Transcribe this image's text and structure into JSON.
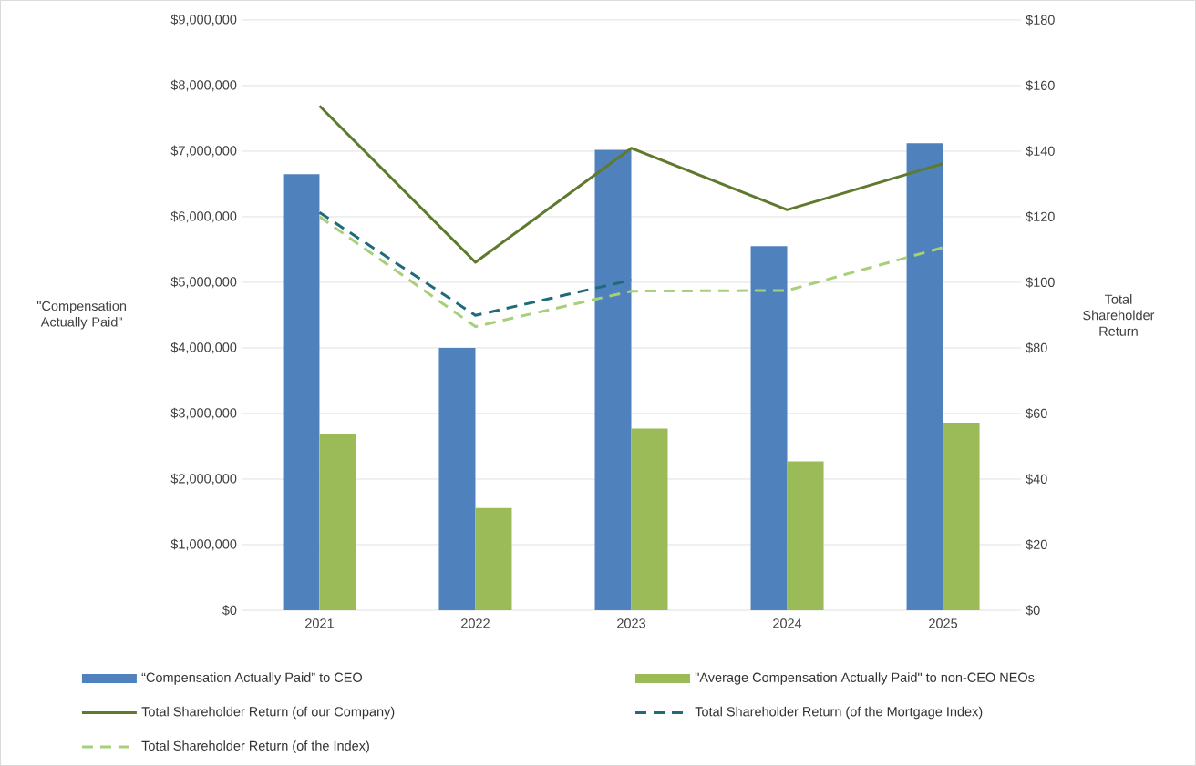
{
  "chart_data": {
    "type": "bar",
    "categories": [
      "2021",
      "2022",
      "2023",
      "2024",
      "2025"
    ],
    "ylabel": "\"Compensation Actually Paid\"",
    "y2label": "Total Shareholder Return",
    "series": [
      {
        "name": "“Compensation Actually Paid” to CEO",
        "color": "#4f81bd",
        "values": [
          6650000,
          4000000,
          7020000,
          5550000,
          7120000
        ]
      },
      {
        "name": "\"Average Compensation Actually Paid\" to non-CEO NEOs",
        "color": "#9bbb59",
        "values": [
          2680000,
          1560000,
          2770000,
          2270000,
          2860000
        ]
      },
      {
        "name": "Total Shareholder Return (of our Company)",
        "type": "line",
        "axis": "y2",
        "color": "#5f7a2e",
        "line_style": "solid",
        "values": [
          153.8,
          106.1,
          140.9,
          122.1,
          136.2
        ]
      },
      {
        "name": "Total Shareholder Return (of the Mortgage Index)",
        "type": "line",
        "axis": "y2",
        "color": "#1f6b7a",
        "line_style": "dashed",
        "values": [
          121.3,
          89.9,
          100.7,
          null,
          null
        ]
      },
      {
        "name": "Total Shareholder Return (of the Index)",
        "type": "line",
        "axis": "y2",
        "color": "#a8cf7a",
        "line_style": "dashed",
        "values": [
          120.0,
          86.5,
          97.3,
          97.5,
          110.6
        ]
      }
    ],
    "ylim": [
      0,
      9000000
    ],
    "yticks": [
      {
        "value": 0,
        "label": "$0"
      },
      {
        "value": 1000000,
        "label": "$1,000,000"
      },
      {
        "value": 2000000,
        "label": "$2,000,000"
      },
      {
        "value": 3000000,
        "label": "$3,000,000"
      },
      {
        "value": 4000000,
        "label": "$4,000,000"
      },
      {
        "value": 5000000,
        "label": "$5,000,000"
      },
      {
        "value": 6000000,
        "label": "$6,000,000"
      },
      {
        "value": 7000000,
        "label": "$7,000,000"
      },
      {
        "value": 8000000,
        "label": "$8,000,000"
      },
      {
        "value": 9000000,
        "label": "$9,000,000"
      }
    ],
    "y2lim": [
      0,
      180
    ],
    "y2ticks": [
      {
        "value": 0,
        "label": "$0"
      },
      {
        "value": 20,
        "label": "$20"
      },
      {
        "value": 40,
        "label": "$40"
      },
      {
        "value": 60,
        "label": "$60"
      },
      {
        "value": 80,
        "label": "$80"
      },
      {
        "value": 100,
        "label": "$100"
      },
      {
        "value": 120,
        "label": "$120"
      },
      {
        "value": 140,
        "label": "$140"
      },
      {
        "value": 160,
        "label": "$160"
      },
      {
        "value": 180,
        "label": "$180"
      }
    ],
    "grid": "y",
    "legend": "bottom"
  }
}
